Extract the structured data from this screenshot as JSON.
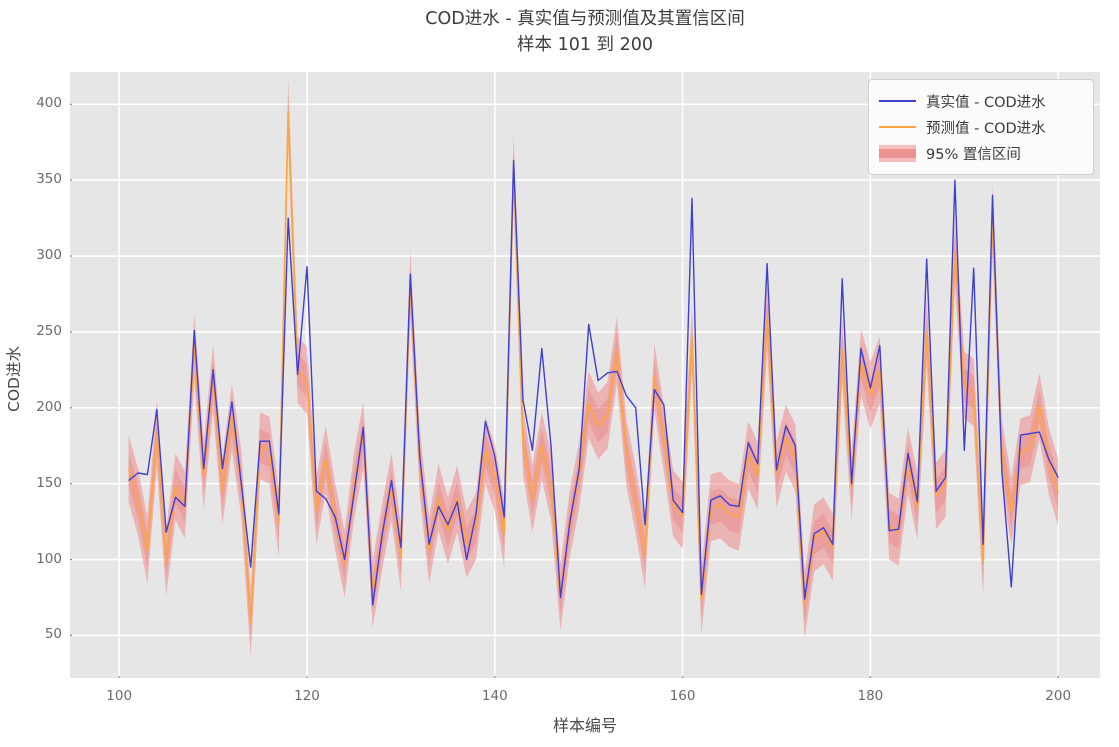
{
  "title": {
    "line1": "COD进水 - 真实值与预测值及其置信区间",
    "line2": "样本 101 到 200"
  },
  "axes": {
    "xlabel": "样本编号",
    "ylabel": "COD进水",
    "x_ticks": [
      100,
      120,
      140,
      160,
      180,
      200
    ],
    "y_ticks": [
      50,
      100,
      150,
      200,
      250,
      300,
      350,
      400
    ]
  },
  "legend": {
    "true_label": "真实值 - COD进水",
    "predicted_label": "预测值 - COD进水",
    "ci_label": "95% 置信区间"
  },
  "colors": {
    "background": "#e6e6e6",
    "grid": "#ffffff",
    "true_line": "#3f3fd3",
    "predicted_line": "#ffa53d",
    "ci_band": "rgba(240,128,128,0.50)",
    "ci_band_inner": "rgba(235,105,105,0.28)",
    "tick_text": "#6b6b6b",
    "label_text": "#4a4a4a"
  },
  "chart_data": {
    "type": "line",
    "title": "COD进水 - 真实值与预测值及其置信区间 / 样本 101 到 200",
    "xlabel": "样本编号",
    "ylabel": "COD进水",
    "x_start": 101,
    "x_end": 200,
    "xlim": [
      95,
      204.5
    ],
    "ylim": [
      22,
      421
    ],
    "grid": true,
    "legend_position": "upper right",
    "ci_halfwidth": 22,
    "series": [
      {
        "name": "真实值 - COD进水",
        "values": [
          152,
          157,
          156,
          199,
          118,
          141,
          135,
          251,
          160,
          225,
          160,
          204,
          150,
          95,
          178,
          178,
          130,
          325,
          222,
          293,
          145,
          140,
          128,
          100,
          143,
          187,
          70,
          116,
          152,
          108,
          288,
          168,
          110,
          135,
          123,
          138,
          100,
          130,
          191,
          168,
          128,
          363,
          205,
          172,
          239,
          174,
          75,
          125,
          160,
          255,
          218,
          223,
          224,
          208,
          200,
          123,
          212,
          202,
          139,
          131,
          338,
          77,
          139,
          142,
          136,
          135,
          177,
          163,
          295,
          159,
          188,
          175,
          74,
          117,
          121,
          110,
          285,
          150,
          239,
          213,
          241,
          119,
          120,
          170,
          138,
          298,
          145,
          154,
          350,
          172,
          292,
          110,
          340,
          158,
          82,
          182,
          183,
          184,
          166,
          154
        ]
      },
      {
        "name": "预测值 - COD进水",
        "values": [
          160,
          138,
          106,
          183,
          98,
          148,
          136,
          240,
          155,
          220,
          145,
          194,
          150,
          58,
          175,
          172,
          124,
          395,
          225,
          218,
          132,
          166,
          128,
          97,
          148,
          182,
          77,
          115,
          148,
          101,
          282,
          165,
          106,
          141,
          119,
          140,
          110,
          122,
          172,
          154,
          117,
          358,
          178,
          140,
          175,
          148,
          75,
          124,
          156,
          202,
          188,
          195,
          238,
          171,
          139,
          103,
          220,
          180,
          137,
          129,
          246,
          73,
          134,
          136,
          130,
          128,
          169,
          155,
          260,
          156,
          180,
          167,
          70,
          114,
          119,
          108,
          238,
          148,
          230,
          208,
          225,
          122,
          118,
          165,
          135,
          250,
          142,
          150,
          302,
          215,
          210,
          98,
          325,
          170,
          132,
          171,
          173,
          201,
          165,
          144
        ]
      }
    ]
  }
}
